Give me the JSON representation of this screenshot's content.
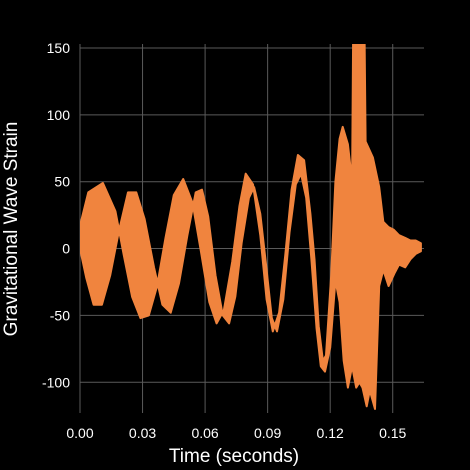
{
  "chart_data": {
    "type": "line",
    "title": "",
    "xlabel": "Time (seconds)",
    "ylabel": "Gravitational Wave Strain",
    "xlim": [
      0.0,
      0.165
    ],
    "ylim": [
      -123,
      153
    ],
    "grid": true,
    "background": "#000000",
    "series_color": "#f0843e",
    "x_ticks": [
      0.0,
      0.03,
      0.06,
      0.09,
      0.12,
      0.15
    ],
    "x_tick_labels": [
      "0.00",
      "0.03",
      "0.06",
      "0.09",
      "0.12",
      "0.15"
    ],
    "y_ticks": [
      -100,
      -50,
      0,
      50,
      100,
      150
    ],
    "y_tick_labels": [
      "-100",
      "-50",
      "0",
      "50",
      "100",
      "150"
    ],
    "series": [
      {
        "outer": [
          [
            0,
            17
          ],
          [
            0.004,
            42
          ],
          [
            0.011,
            49
          ],
          [
            0.017,
            28
          ],
          [
            0.021,
            -5
          ],
          [
            0.025,
            -36
          ],
          [
            0.029,
            -52
          ],
          [
            0.033,
            -50
          ],
          [
            0.037,
            -28
          ],
          [
            0.041,
            8
          ],
          [
            0.045,
            40
          ],
          [
            0.0495,
            52
          ],
          [
            0.054,
            34
          ],
          [
            0.058,
            -2
          ],
          [
            0.062,
            -40
          ],
          [
            0.0655,
            -56
          ],
          [
            0.069,
            -46
          ],
          [
            0.073,
            -10
          ],
          [
            0.0765,
            32
          ],
          [
            0.0795,
            56
          ],
          [
            0.083,
            48
          ],
          [
            0.0865,
            10
          ],
          [
            0.0895,
            -38
          ],
          [
            0.0925,
            -62
          ],
          [
            0.0955,
            -48
          ],
          [
            0.0985,
            -4
          ],
          [
            0.1015,
            44
          ],
          [
            0.1045,
            70
          ],
          [
            0.1075,
            66
          ],
          [
            0.1105,
            26
          ],
          [
            0.1125,
            -8
          ],
          [
            0.1145,
            -58
          ],
          [
            0.1165,
            -84
          ],
          [
            0.118,
            -80
          ],
          [
            0.1205,
            -20
          ],
          [
            0.1225,
            50
          ],
          [
            0.1245,
            82
          ],
          [
            0.126,
            91
          ],
          [
            0.1285,
            78
          ],
          [
            0.1305,
            50
          ],
          [
            0.131,
            155
          ],
          [
            0.1365,
            155
          ],
          [
            0.137,
            80
          ],
          [
            0.1405,
            68
          ],
          [
            0.1435,
            46
          ],
          [
            0.1455,
            20
          ],
          [
            0.148,
            16
          ],
          [
            0.1505,
            14
          ],
          [
            0.153,
            10
          ],
          [
            0.156,
            8
          ],
          [
            0.1585,
            6
          ],
          [
            0.161,
            6
          ],
          [
            0.1635,
            4
          ],
          [
            0.1635,
            -2
          ],
          [
            0.161,
            -4
          ],
          [
            0.1585,
            -8
          ],
          [
            0.156,
            -14
          ],
          [
            0.153,
            -12
          ],
          [
            0.151,
            -18
          ],
          [
            0.148,
            -28
          ],
          [
            0.1455,
            -16
          ],
          [
            0.1435,
            -28
          ],
          [
            0.1415,
            -120
          ],
          [
            0.139,
            -106
          ],
          [
            0.1375,
            -118
          ],
          [
            0.1355,
            -104
          ],
          [
            0.134,
            -100
          ],
          [
            0.1325,
            -104
          ],
          [
            0.1305,
            -88
          ],
          [
            0.1285,
            -104
          ],
          [
            0.1265,
            -84
          ],
          [
            0.1245,
            -40
          ],
          [
            0.1225,
            -24
          ],
          [
            0.12,
            -74
          ],
          [
            0.1175,
            -92
          ],
          [
            0.1155,
            -88
          ],
          [
            0.1135,
            -60
          ],
          [
            0.111,
            -8
          ],
          [
            0.1085,
            38
          ],
          [
            0.106,
            56
          ],
          [
            0.1035,
            48
          ],
          [
            0.1005,
            12
          ],
          [
            0.0975,
            -38
          ],
          [
            0.0945,
            -62
          ],
          [
            0.092,
            -52
          ],
          [
            0.0895,
            -16
          ],
          [
            0.0865,
            26
          ],
          [
            0.0835,
            46
          ],
          [
            0.081,
            38
          ],
          [
            0.0775,
            4
          ],
          [
            0.0745,
            -36
          ],
          [
            0.0715,
            -56
          ],
          [
            0.0685,
            -50
          ],
          [
            0.065,
            -20
          ],
          [
            0.0615,
            24
          ],
          [
            0.0585,
            44
          ],
          [
            0.0555,
            42
          ],
          [
            0.0515,
            10
          ],
          [
            0.0475,
            -26
          ],
          [
            0.0435,
            -48
          ],
          [
            0.0395,
            -42
          ],
          [
            0.0355,
            -14
          ],
          [
            0.031,
            22
          ],
          [
            0.027,
            42
          ],
          [
            0.023,
            42
          ],
          [
            0.0185,
            12
          ],
          [
            0.0145,
            -20
          ],
          [
            0.0105,
            -42
          ],
          [
            0.0065,
            -42
          ],
          [
            0.003,
            -22
          ],
          [
            0,
            0
          ]
        ]
      }
    ]
  }
}
